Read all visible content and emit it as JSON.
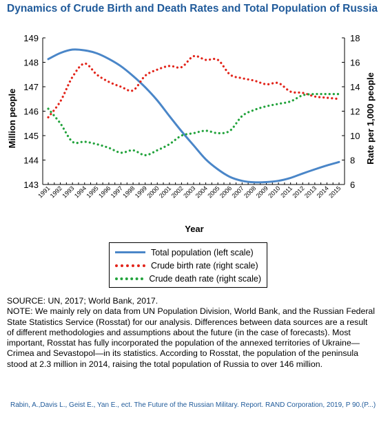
{
  "title": "Dynamics of Crude Birth and Death Rates and Total Population of Russia",
  "legend": {
    "items": [
      {
        "label": "Total population (left scale)",
        "color": "#4a86c8",
        "style": "solid"
      },
      {
        "label": "Crude birth rate (right scale)",
        "color": "#e2241a",
        "style": "dotted"
      },
      {
        "label": "Crude death rate (right scale)",
        "color": "#22a33c",
        "style": "dotted"
      }
    ]
  },
  "notes": {
    "source": "SOURCE: UN, 2017; World Bank, 2017.",
    "note": "NOTE: We mainly rely on data from UN Population Division, World Bank, and the Russian Federal State Statistics Service (Rosstat) for our analysis. Differences between data sources are a result of different methodologies and assumptions about the future (in the case of forecasts). Most important, Rosstat has fully incorporated the population of the annexed territories of Ukraine—Crimea and Sevastopol—in its statistics. According to Rosstat, the population of the peninsula stood at 2.3 million in 2014, raising the total population of Russia to over 146 million."
  },
  "citation": "Rabin, A.,Davis L., Geist E., Yan E., ect. The Future of the Russian Military. Report. RAND Corporation, 2019, P 90.(P...)",
  "chart_data": {
    "type": "line",
    "title": "Dynamics of Crude Birth and Death Rates and Total Population of Russia",
    "xlabel": "Year",
    "ylabel": "Million people",
    "y2label": "Rate per 1,000 people",
    "ylim": [
      143,
      149
    ],
    "y2lim": [
      6,
      18
    ],
    "yticks": [
      143,
      144,
      145,
      146,
      147,
      148,
      149
    ],
    "y2ticks": [
      6,
      8,
      10,
      12,
      14,
      16,
      18
    ],
    "grid": false,
    "legend_position": "below",
    "x": [
      1991,
      1992,
      1993,
      1994,
      1995,
      1996,
      1997,
      1998,
      1999,
      2000,
      2001,
      2002,
      2003,
      2004,
      2005,
      2006,
      2007,
      2008,
      2009,
      2010,
      2011,
      2012,
      2013,
      2014,
      2015
    ],
    "x_fine_step": 0.5,
    "series": [
      {
        "name": "Total population (left scale)",
        "axis": "left",
        "color": "#4a86c8",
        "style": "solid",
        "x": [
          1991,
          1992,
          1993,
          1994,
          1995,
          1996,
          1997,
          1998,
          1999,
          2000,
          2001,
          2002,
          2003,
          2004,
          2005,
          2006,
          2007,
          2008,
          2009,
          2010,
          2011,
          2012,
          2013,
          2014,
          2015
        ],
        "values": [
          148.13,
          148.38,
          148.52,
          148.49,
          148.37,
          148.14,
          147.84,
          147.44,
          146.98,
          146.44,
          145.8,
          145.18,
          144.6,
          144.03,
          143.62,
          143.31,
          143.15,
          143.09,
          143.1,
          143.15,
          143.27,
          143.45,
          143.62,
          143.78,
          143.92
        ]
      },
      {
        "name": "Crude birth rate (right scale)",
        "axis": "right",
        "color": "#e2241a",
        "style": "dotted",
        "x": [
          1991,
          1992,
          1993,
          1994,
          1995,
          1996,
          1997,
          1998,
          1999,
          2000,
          2001,
          2002,
          2003,
          2004,
          2005,
          2006,
          2007,
          2008,
          2009,
          2010,
          2011,
          2012,
          2013,
          2014,
          2015
        ],
        "values": [
          11.5,
          12.8,
          14.8,
          15.9,
          15.0,
          14.4,
          14.0,
          13.7,
          14.9,
          15.4,
          15.7,
          15.6,
          16.5,
          16.2,
          16.2,
          15.0,
          14.7,
          14.5,
          14.2,
          14.3,
          13.6,
          13.5,
          13.2,
          13.1,
          13.0
        ]
      },
      {
        "name": "Crude death rate (right scale)",
        "axis": "right",
        "color": "#22a33c",
        "style": "dotted",
        "x": [
          1991,
          1992,
          1993,
          1994,
          1995,
          1996,
          1997,
          1998,
          1999,
          2000,
          2001,
          2002,
          2003,
          2004,
          2005,
          2006,
          2007,
          2008,
          2009,
          2010,
          2011,
          2012,
          2013,
          2014,
          2015
        ],
        "values": [
          12.2,
          11.0,
          9.5,
          9.5,
          9.3,
          9.0,
          8.6,
          8.8,
          8.4,
          8.8,
          9.3,
          10.0,
          10.2,
          10.4,
          10.2,
          10.4,
          11.6,
          12.1,
          12.4,
          12.6,
          12.8,
          13.3,
          13.4,
          13.4,
          13.4
        ]
      }
    ]
  }
}
